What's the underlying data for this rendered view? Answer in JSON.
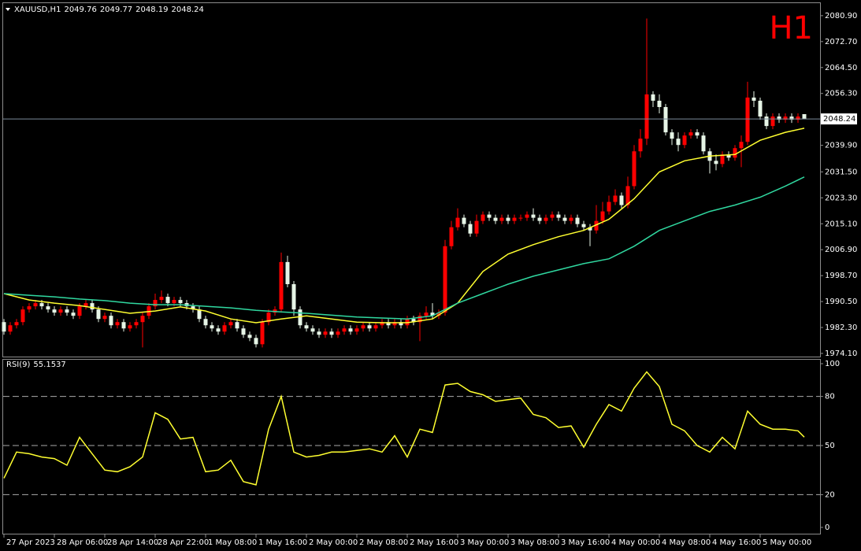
{
  "chart_data": [
    {
      "type": "candlestick",
      "symbol": "XAUUSD,H1",
      "timeframe_label": "H1",
      "up_color": "#ff0000",
      "down_color": "#e6f5e6",
      "open": [
        1984,
        1981,
        1983,
        1984,
        1988,
        1989,
        1990,
        1989,
        1988,
        1987,
        1988,
        1987,
        1986,
        1989,
        1990,
        1988,
        1985,
        1986,
        1983,
        1984,
        1982,
        1983,
        1984,
        1986,
        1989,
        1991,
        1992,
        1990,
        1991,
        1990,
        1989,
        1988,
        1985,
        1983,
        1982,
        1981,
        1983,
        1984,
        1982,
        1980,
        1979,
        1977,
        1984,
        1987,
        1988,
        2003,
        1996,
        1988,
        1983,
        1982,
        1981,
        1980,
        1981,
        1980,
        1981,
        1982,
        1981,
        1982,
        1983,
        1982,
        1983,
        1984,
        1983,
        1984,
        1983,
        1985,
        1984,
        1986,
        1987,
        1986,
        1987,
        2008,
        2014,
        2017,
        2015,
        2012,
        2016,
        2018,
        2017,
        2016,
        2017,
        2016,
        2017,
        2017,
        2018,
        2017,
        2016,
        2017,
        2018,
        2017,
        2016,
        2017,
        2015,
        2014,
        2013,
        2016,
        2019,
        2022,
        2024,
        2021,
        2027,
        2038,
        2042,
        2056,
        2054,
        2052,
        2044,
        2042,
        2040,
        2043,
        2044,
        2043,
        2038,
        2035,
        2034,
        2037,
        2036,
        2039,
        2041,
        2055,
        2054,
        2049,
        2046,
        2049,
        2048,
        2049,
        2048,
        2049.76
      ],
      "high": [
        1985,
        1984,
        1985,
        1989,
        1990,
        1991,
        1991,
        1990,
        1989,
        1989,
        1989,
        1988,
        1990,
        1991,
        1991,
        1989,
        1987,
        1987,
        1985,
        1985,
        1984,
        1985,
        1987,
        1990,
        1993,
        1994,
        1993,
        1992,
        1992,
        1991,
        1990,
        1989,
        1986,
        1984,
        1983,
        1984,
        1985,
        1985,
        1983,
        1981,
        1980,
        1985,
        1988,
        1989,
        2006,
        2005,
        1997,
        1989,
        1984,
        1983,
        1982,
        1982,
        1982,
        1982,
        1983,
        1983,
        1983,
        1984,
        1984,
        1984,
        1985,
        1985,
        1985,
        1985,
        1986,
        1986,
        1987,
        1989,
        1990,
        1988,
        2010,
        2016,
        2020,
        2018,
        2016,
        2018,
        2019,
        2019,
        2018,
        2018,
        2018,
        2018,
        2018,
        2019,
        2020,
        2018,
        2018,
        2019,
        2019,
        2018,
        2018,
        2018,
        2016,
        2015,
        2021,
        2022,
        2024,
        2026,
        2025,
        2030,
        2040,
        2045,
        2080,
        2057,
        2056,
        2053,
        2045,
        2044,
        2044,
        2045,
        2045,
        2044,
        2039,
        2037,
        2038,
        2038,
        2040,
        2043,
        2060,
        2057,
        2055,
        2050,
        2050,
        2050,
        2050,
        2050,
        2050,
        2049.77
      ],
      "low": [
        1980,
        1980,
        1982,
        1983,
        1987,
        1988,
        1988,
        1987,
        1986,
        1986,
        1986,
        1985,
        1985,
        1988,
        1987,
        1984,
        1984,
        1982,
        1982,
        1981,
        1981,
        1982,
        1976,
        1985,
        1988,
        1990,
        1989,
        1989,
        1989,
        1988,
        1987,
        1984,
        1982,
        1981,
        1980,
        1980,
        1982,
        1981,
        1979,
        1978,
        1976,
        1976,
        1983,
        1986,
        1987,
        1995,
        1986,
        1982,
        1981,
        1980,
        1979,
        1979,
        1979,
        1979,
        1980,
        1980,
        1980,
        1981,
        1981,
        1981,
        1982,
        1982,
        1982,
        1982,
        1982,
        1983,
        1978,
        1985,
        1985,
        1985,
        1986,
        2007,
        2013,
        2014,
        2011,
        2011,
        2015,
        2016,
        2015,
        2015,
        2015,
        2015,
        2016,
        2016,
        2016,
        2015,
        2015,
        2016,
        2016,
        2015,
        2015,
        2014,
        2013,
        2008,
        2012,
        2015,
        2018,
        2021,
        2020,
        2020,
        2026,
        2036,
        2040,
        2052,
        2050,
        2043,
        2040,
        2038,
        2039,
        2042,
        2042,
        2037,
        2031,
        2032,
        2033,
        2035,
        2035,
        2033,
        2040,
        2052,
        2048,
        2045,
        2045,
        2047,
        2047,
        2047,
        2047,
        2048.19
      ],
      "close": [
        1981,
        1983,
        1984,
        1988,
        1989,
        1990,
        1989,
        1988,
        1987,
        1988,
        1987,
        1986,
        1989,
        1990,
        1988,
        1985,
        1986,
        1983,
        1984,
        1982,
        1983,
        1984,
        1986,
        1989,
        1991,
        1992,
        1990,
        1991,
        1990,
        1989,
        1988,
        1985,
        1983,
        1982,
        1981,
        1983,
        1984,
        1982,
        1980,
        1979,
        1977,
        1984,
        1987,
        1988,
        2003,
        1996,
        1988,
        1983,
        1982,
        1981,
        1980,
        1981,
        1980,
        1981,
        1982,
        1981,
        1982,
        1983,
        1982,
        1983,
        1984,
        1983,
        1984,
        1983,
        1985,
        1984,
        1986,
        1987,
        1986,
        1987,
        2008,
        2014,
        2017,
        2015,
        2012,
        2016,
        2018,
        2017,
        2016,
        2017,
        2016,
        2017,
        2017,
        2018,
        2017,
        2016,
        2017,
        2018,
        2017,
        2016,
        2017,
        2015,
        2014,
        2013,
        2016,
        2019,
        2022,
        2024,
        2021,
        2027,
        2038,
        2042,
        2056,
        2054,
        2052,
        2044,
        2042,
        2040,
        2043,
        2044,
        2043,
        2038,
        2035,
        2034,
        2037,
        2036,
        2039,
        2041,
        2055,
        2054,
        2049,
        2046,
        2049,
        2048,
        2049,
        2048,
        2049,
        2048.24
      ],
      "lines": [
        {
          "color": "#ffff30",
          "x": [
            0,
            4,
            8,
            12,
            16,
            20,
            24,
            28,
            32,
            36,
            40,
            44,
            48,
            52,
            56,
            60,
            64,
            68,
            72,
            76,
            80,
            84,
            88,
            92,
            96,
            100,
            104,
            108,
            112,
            116,
            120,
            124,
            127
          ],
          "values": [
            1993,
            1991,
            1990,
            1989.2,
            1988,
            1986.8,
            1987.5,
            1988.8,
            1987.5,
            1985,
            1983.8,
            1985,
            1986,
            1985,
            1984,
            1983.8,
            1983.8,
            1985,
            1990,
            2000,
            2005.5,
            2008.5,
            2011,
            2013,
            2016.5,
            2023,
            2031.5,
            2035,
            2036.5,
            2037,
            2041.5,
            2044,
            2045.3
          ]
        },
        {
          "color": "#30d8a0",
          "x": [
            0,
            4,
            8,
            12,
            16,
            20,
            24,
            28,
            32,
            36,
            40,
            44,
            48,
            52,
            56,
            60,
            64,
            68,
            72,
            76,
            80,
            84,
            88,
            92,
            96,
            100,
            104,
            108,
            112,
            116,
            120,
            124,
            127
          ],
          "values": [
            1993,
            1992.5,
            1992,
            1991.3,
            1990.8,
            1990,
            1989.5,
            1989.5,
            1989,
            1988.5,
            1987.7,
            1987.2,
            1986.8,
            1986.2,
            1985.6,
            1985.3,
            1985,
            1986,
            1990,
            1993,
            1996,
            1998.5,
            2000.5,
            2002.5,
            2004,
            2008,
            2013,
            2016,
            2019,
            2021,
            2023.5,
            2027,
            2029.9
          ]
        }
      ],
      "xlim": [
        -0.25,
        129.5
      ],
      "xticks": [
        {
          "value": 0,
          "label": "27 Apr 2023"
        },
        {
          "value": 8,
          "label": "28 Apr 06:00"
        },
        {
          "value": 16,
          "label": "28 Apr 14:00"
        },
        {
          "value": 24,
          "label": "28 Apr 22:00"
        },
        {
          "value": 32,
          "label": "1 May 08:00"
        },
        {
          "value": 40,
          "label": "1 May 16:00"
        },
        {
          "value": 48,
          "label": "2 May 00:00"
        },
        {
          "value": 56,
          "label": "2 May 08:00"
        },
        {
          "value": 64,
          "label": "2 May 16:00"
        },
        {
          "value": 72,
          "label": "3 May 00:00"
        },
        {
          "value": 80,
          "label": "3 May 08:00"
        },
        {
          "value": 88,
          "label": "3 May 16:00"
        },
        {
          "value": 96,
          "label": "4 May 00:00"
        },
        {
          "value": 104,
          "label": "4 May 08:00"
        },
        {
          "value": 112,
          "label": "4 May 16:00"
        },
        {
          "value": 120,
          "label": "5 May 00:00"
        }
      ],
      "ylim": [
        1973.1,
        2085.1
      ],
      "yticks": [
        {
          "value": 2080.9,
          "label": "2080.90"
        },
        {
          "value": 2072.7,
          "label": "2072.70"
        },
        {
          "value": 2064.5,
          "label": "2064.50"
        },
        {
          "value": 2056.3,
          "label": "2056.30"
        },
        {
          "value": 2039.9,
          "label": "2039.90"
        },
        {
          "value": 2031.5,
          "label": "2031.50"
        },
        {
          "value": 2023.3,
          "label": "2023.30"
        },
        {
          "value": 2015.1,
          "label": "2015.10"
        },
        {
          "value": 2006.9,
          "label": "2006.90"
        },
        {
          "value": 1998.7,
          "label": "1998.70"
        },
        {
          "value": 1990.5,
          "label": "1990.50"
        },
        {
          "value": 1982.3,
          "label": "1982.30"
        },
        {
          "value": 1974.1,
          "label": "1974.10"
        }
      ]
    },
    {
      "type": "line",
      "title": "RSI(9)",
      "color": "#ffff30",
      "x": [
        0,
        2,
        4,
        6,
        8,
        10,
        12,
        14,
        16,
        18,
        20,
        22,
        24,
        26,
        28,
        30,
        32,
        34,
        36,
        38,
        40,
        42,
        44,
        46,
        48,
        50,
        52,
        54,
        56,
        58,
        60,
        62,
        64,
        66,
        68,
        70,
        72,
        74,
        76,
        78,
        80,
        82,
        84,
        86,
        88,
        90,
        92,
        94,
        96,
        98,
        100,
        102,
        104,
        106,
        108,
        110,
        112,
        114,
        116,
        118,
        120,
        122,
        124,
        126,
        127
      ],
      "values": [
        30,
        46,
        45,
        43,
        42,
        38,
        55,
        45,
        35,
        34,
        37,
        43,
        70,
        66,
        54,
        55,
        34,
        35,
        41,
        28,
        26,
        60,
        80,
        46,
        43,
        44,
        46,
        46,
        47,
        48,
        46,
        56,
        43,
        60,
        58,
        87,
        88,
        83,
        81,
        77,
        78,
        79,
        69,
        67,
        61,
        62,
        49,
        63,
        75,
        71,
        85,
        95,
        86,
        63,
        59,
        50,
        46,
        55,
        48,
        71,
        63,
        60,
        60,
        59,
        55.1537
      ],
      "ylim": [
        -3.85,
        102.9
      ],
      "yticks": [
        0,
        20,
        50,
        80,
        100
      ],
      "levels": [
        20,
        50,
        80
      ]
    }
  ]
}
